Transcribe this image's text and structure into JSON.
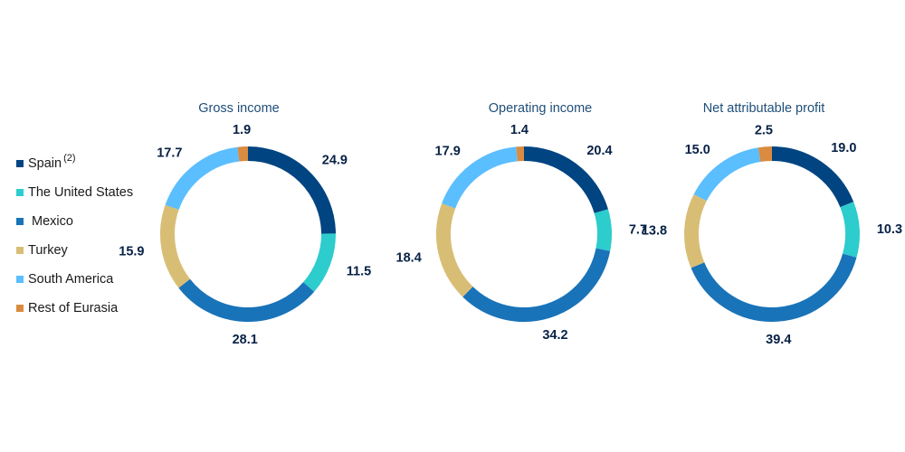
{
  "legend": [
    {
      "label": "Spain",
      "superscript": "(2)",
      "color": "#004481"
    },
    {
      "label": "The United States",
      "superscript": "",
      "color": "#2dcccd"
    },
    {
      "label": " Mexico",
      "superscript": "",
      "color": "#1973b8"
    },
    {
      "label": "Turkey",
      "superscript": "",
      "color": "#d8be75"
    },
    {
      "label": "South America",
      "superscript": "",
      "color": "#5bbeff"
    },
    {
      "label": "Rest of Eurasia",
      "superscript": "",
      "color": "#da8b3f"
    }
  ],
  "chart_data": [
    {
      "type": "pie",
      "title": "Gross income",
      "categories": [
        "Spain",
        "The United States",
        "Mexico",
        "Turkey",
        "South America",
        "Rest of Eurasia"
      ],
      "values": [
        24.9,
        11.5,
        28.1,
        15.9,
        17.7,
        1.9
      ],
      "labels": [
        "24.9",
        "11.5",
        "28.1",
        "15.9",
        "17.7",
        "1.9"
      ]
    },
    {
      "type": "pie",
      "title": "Operating income",
      "categories": [
        "Spain",
        "The United States",
        "Mexico",
        "Turkey",
        "South America",
        "Rest of Eurasia"
      ],
      "values": [
        20.4,
        7.7,
        34.2,
        18.4,
        17.9,
        1.4
      ],
      "labels": [
        "20.4",
        "7.7",
        "34.2",
        "18.4",
        "17.9",
        "1.4"
      ]
    },
    {
      "type": "pie",
      "title": "Net attributable profit",
      "categories": [
        "Spain",
        "The United States",
        "Mexico",
        "Turkey",
        "South America",
        "Rest of Eurasia"
      ],
      "values": [
        19.0,
        10.3,
        39.4,
        13.8,
        15.0,
        2.5
      ],
      "labels": [
        "19.0",
        "10.3",
        "39.4",
        "13.8",
        "15.0",
        "2.5"
      ]
    }
  ]
}
